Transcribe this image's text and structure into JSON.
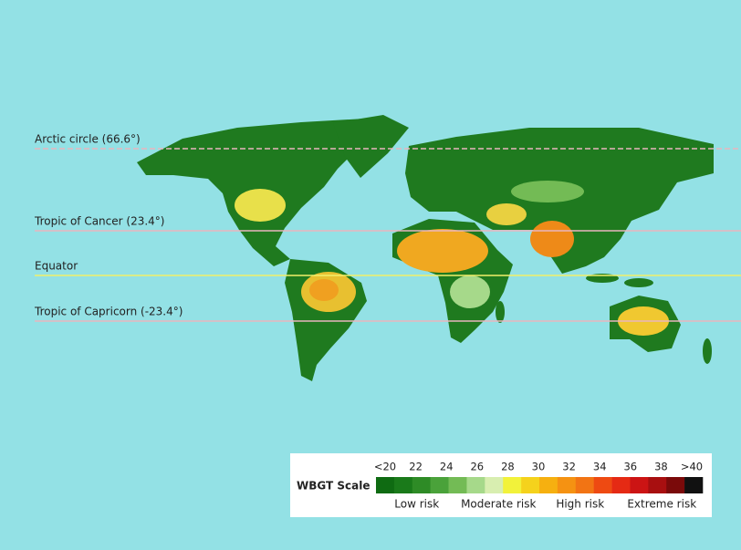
{
  "map": {
    "lines": [
      {
        "label": "Arctic circle (66.6°)",
        "color": "#e9b5bd",
        "dashed": true
      },
      {
        "label": "Tropic of Cancer (23.4°)",
        "color": "#e9b5bd",
        "dashed": false
      },
      {
        "label": "Equator",
        "color": "#f2ef6a",
        "dashed": false
      },
      {
        "label": "Tropic of Capricorn (-23.4°)",
        "color": "#e9b5bd",
        "dashed": false
      }
    ],
    "legend": {
      "title": "WBGT Scale",
      "ticks": [
        "<20",
        "22",
        "24",
        "26",
        "28",
        "30",
        "32",
        "34",
        "36",
        "38",
        ">40"
      ],
      "colors": [
        "#0f6b12",
        "#1a7a1a",
        "#2e8b26",
        "#4aa23a",
        "#73bb55",
        "#a6d98a",
        "#d8eeb0",
        "#f2f23a",
        "#f5d21c",
        "#f6b010",
        "#f59212",
        "#f27414",
        "#ee4a12",
        "#e52a14",
        "#cc1414",
        "#a80f10",
        "#7a0a0a",
        "#111111"
      ],
      "risks": [
        "Low risk",
        "Moderate risk",
        "High risk",
        "Extreme risk"
      ]
    }
  }
}
